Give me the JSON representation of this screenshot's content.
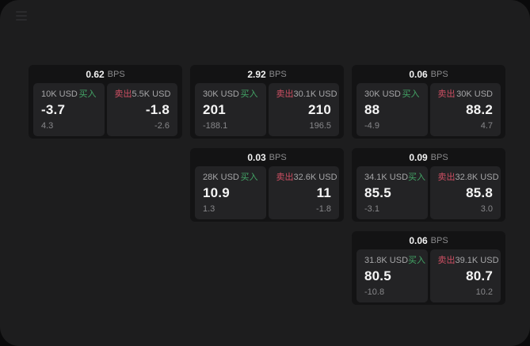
{
  "window": {
    "bps_suffix": "BPS",
    "buy_label": "买入",
    "sell_label": "卖出"
  },
  "colors": {
    "backdrop": "#0a0a0b",
    "window_bg": "#1d1d1e",
    "card_bg": "#131314",
    "panel_bg": "#232325",
    "buy_green": "#43a566",
    "sell_red": "#ce4f63",
    "price_text": "#f5f5f5",
    "muted_text": "#87878a"
  },
  "cards": [
    {
      "bps": "0.62",
      "buy": {
        "amount": "10K USD",
        "price": "-3.7",
        "delta": "4.3"
      },
      "sell": {
        "amount": "5.5K USD",
        "price": "-1.8",
        "delta": "-2.6"
      }
    },
    {
      "bps": "2.92",
      "buy": {
        "amount": "30K USD",
        "price": "201",
        "delta": "-188.1"
      },
      "sell": {
        "amount": "30.1K USD",
        "price": "210",
        "delta": "196.5"
      }
    },
    {
      "bps": "0.06",
      "buy": {
        "amount": "30K USD",
        "price": "88",
        "delta": "-4.9"
      },
      "sell": {
        "amount": "30K USD",
        "price": "88.2",
        "delta": "4.7"
      }
    },
    {
      "bps": "0.03",
      "buy": {
        "amount": "28K USD",
        "price": "10.9",
        "delta": "1.3"
      },
      "sell": {
        "amount": "32.6K USD",
        "price": "11",
        "delta": "-1.8"
      }
    },
    {
      "bps": "0.09",
      "buy": {
        "amount": "34.1K USD",
        "price": "85.5",
        "delta": "-3.1"
      },
      "sell": {
        "amount": "32.8K USD",
        "price": "85.8",
        "delta": "3.0"
      }
    },
    {
      "bps": "0.06",
      "buy": {
        "amount": "31.8K USD",
        "price": "80.5",
        "delta": "-10.8"
      },
      "sell": {
        "amount": "39.1K USD",
        "price": "80.7",
        "delta": "10.2"
      }
    }
  ]
}
